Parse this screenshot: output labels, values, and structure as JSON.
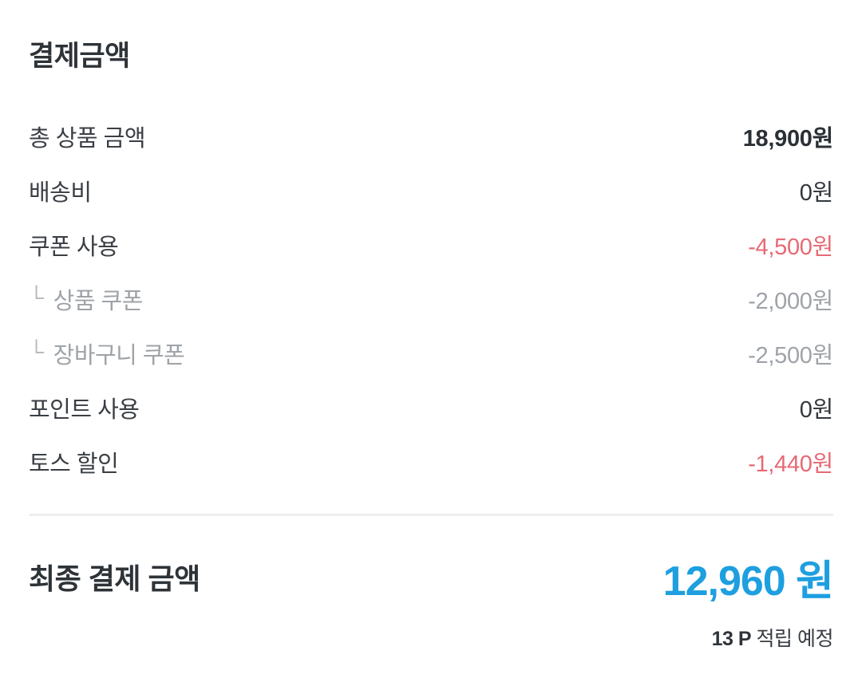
{
  "section_title": "결제금액",
  "rows": [
    {
      "label": "총 상품 금액",
      "value": "18,900원"
    },
    {
      "label": "배송비",
      "value": "0원"
    },
    {
      "label": "쿠폰 사용",
      "value": "-4,500원"
    },
    {
      "label": "상품 쿠폰",
      "value": "-2,000원",
      "prefix": "└"
    },
    {
      "label": "장바구니 쿠폰",
      "value": "-2,500원",
      "prefix": "└"
    },
    {
      "label": "포인트 사용",
      "value": "0원"
    },
    {
      "label": "토스 할인",
      "value": "-1,440원"
    }
  ],
  "total": {
    "label": "최종 결제 금액",
    "amount": "12,960 원"
  },
  "reward_note": {
    "points": "13 P",
    "text": " 적립 예정"
  },
  "colors": {
    "accent_blue": "#1e9fe0",
    "discount_red": "#e66a75",
    "muted_gray": "#9ea3a8"
  }
}
